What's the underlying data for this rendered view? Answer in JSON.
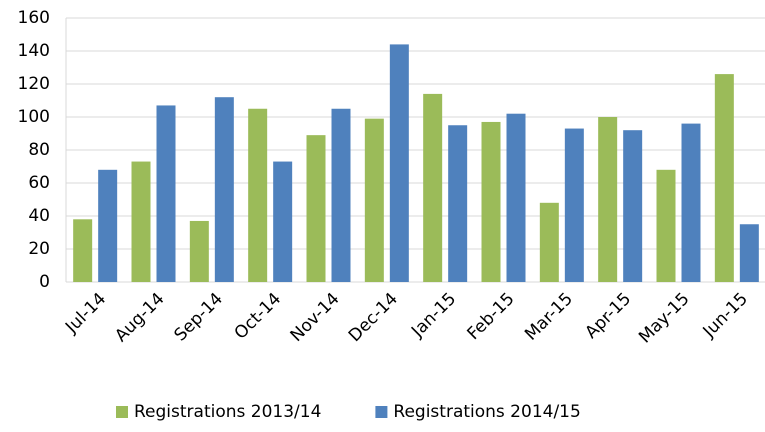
{
  "chart_data": {
    "type": "bar",
    "categories": [
      "Jul-14",
      "Aug-14",
      "Sep-14",
      "Oct-14",
      "Nov-14",
      "Dec-14",
      "Jan-15",
      "Feb-15",
      "Mar-15",
      "Apr-15",
      "May-15",
      "Jun-15"
    ],
    "series": [
      {
        "name": "Registrations 2013/14",
        "color": "#9bbb59",
        "values": [
          38,
          73,
          37,
          105,
          89,
          99,
          114,
          97,
          48,
          100,
          68,
          126
        ]
      },
      {
        "name": "Registrations 2014/15",
        "color": "#4f81bd",
        "values": [
          68,
          107,
          112,
          73,
          105,
          144,
          95,
          102,
          93,
          92,
          96,
          35
        ]
      }
    ],
    "ylim": [
      0,
      160
    ],
    "yticks": [
      0,
      20,
      40,
      60,
      80,
      100,
      120,
      140,
      160
    ],
    "grid": true,
    "legend": "bottom"
  }
}
